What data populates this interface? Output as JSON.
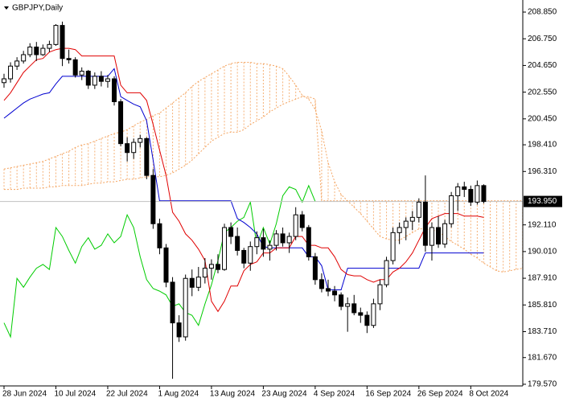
{
  "chart_data": {
    "type": "candlestick",
    "title": "GBPJPY,Daily",
    "categories": [
      "28 Jun 2024",
      null,
      null,
      null,
      null,
      null,
      null,
      null,
      "10 Jul 2024",
      null,
      null,
      null,
      null,
      null,
      null,
      null,
      "22 Jul 2024",
      null,
      null,
      null,
      null,
      null,
      null,
      null,
      "1 Aug 2024",
      null,
      null,
      null,
      null,
      null,
      null,
      null,
      "13 Aug 2024",
      null,
      null,
      null,
      null,
      null,
      null,
      null,
      "23 Aug 2024",
      null,
      null,
      null,
      null,
      null,
      null,
      null,
      "4 Sep 2024",
      null,
      null,
      null,
      null,
      null,
      null,
      null,
      "16 Sep 2024",
      null,
      null,
      null,
      null,
      null,
      null,
      null,
      "26 Sep 2024",
      null,
      null,
      null,
      null,
      null,
      null,
      null,
      "8 Oct 2024",
      null,
      null,
      null,
      null,
      null,
      null,
      null,
      null
    ],
    "open": [
      203.3,
      203.6,
      204.6,
      205.0,
      205.5,
      206.1,
      205.5,
      206.0,
      206.3,
      207.8,
      205.2,
      205.1,
      203.9,
      204.2,
      203.1,
      203.8,
      203.4,
      203.6,
      201.8,
      198.5,
      197.8,
      198.6,
      198.9,
      196.0,
      192.2,
      190.3,
      187.6,
      184.4,
      183.3,
      187.9,
      187.2,
      188.0,
      188.7,
      189.0,
      188.6,
      191.9,
      191.2,
      190.1,
      189.1,
      190.4,
      191.1,
      190.2,
      190.5,
      191.4,
      190.7,
      191.2,
      192.9,
      191.9,
      189.6,
      187.8,
      187.1,
      186.9,
      186.6,
      185.7,
      185.9,
      185.2,
      185.0,
      184.2,
      185.9,
      187.4,
      189.3,
      191.5,
      191.9,
      192.4,
      192.7,
      193.9,
      190.5,
      191.9,
      190.6,
      192.2,
      194.4,
      195.1,
      194.9,
      193.9,
      195.2,
      null,
      null,
      null,
      null,
      null,
      null
    ],
    "high": [
      204.0,
      204.9,
      205.3,
      205.8,
      206.4,
      206.5,
      206.3,
      206.6,
      207.9,
      208.1,
      205.9,
      205.3,
      204.5,
      204.3,
      204.1,
      204.2,
      203.9,
      203.8,
      202.0,
      199.0,
      198.9,
      199.2,
      199.0,
      196.5,
      192.6,
      190.6,
      188.0,
      185.0,
      188.2,
      188.6,
      188.8,
      189.5,
      189.4,
      189.8,
      192.2,
      192.3,
      191.9,
      190.3,
      190.8,
      191.6,
      191.8,
      190.9,
      191.7,
      191.9,
      191.5,
      193.5,
      193.2,
      192.1,
      189.9,
      188.3,
      187.8,
      187.3,
      186.8,
      186.4,
      186.6,
      185.6,
      185.3,
      186.3,
      187.8,
      189.6,
      191.9,
      192.3,
      192.7,
      193.2,
      194.2,
      196.0,
      192.3,
      192.8,
      192.5,
      194.7,
      195.4,
      195.5,
      195.2,
      195.6,
      195.3,
      null,
      null,
      null,
      null,
      null,
      null
    ],
    "low": [
      202.9,
      203.3,
      204.3,
      204.8,
      205.3,
      205.0,
      205.4,
      205.7,
      206.2,
      204.6,
      204.8,
      203.7,
      203.5,
      202.8,
      202.8,
      203.0,
      202.9,
      201.5,
      198.3,
      197.1,
      197.3,
      198.2,
      195.7,
      191.8,
      189.8,
      187.2,
      180.0,
      182.9,
      183.0,
      186.5,
      186.9,
      187.5,
      187.8,
      188.3,
      188.5,
      190.6,
      189.7,
      188.7,
      188.5,
      189.8,
      189.6,
      189.3,
      190.1,
      190.4,
      189.9,
      190.9,
      191.6,
      189.3,
      187.4,
      186.8,
      186.5,
      186.1,
      185.4,
      183.7,
      185.0,
      184.4,
      183.6,
      184.0,
      185.4,
      187.2,
      189.0,
      190.6,
      190.9,
      191.7,
      192.3,
      190.0,
      189.3,
      190.3,
      190.3,
      191.9,
      193.2,
      194.3,
      193.6,
      193.7,
      193.8,
      null,
      null,
      null,
      null,
      null,
      null
    ],
    "close": [
      203.6,
      204.6,
      205.0,
      205.5,
      206.1,
      205.5,
      206.0,
      206.3,
      207.8,
      205.2,
      205.1,
      203.9,
      204.2,
      203.1,
      203.8,
      203.4,
      203.6,
      201.8,
      198.5,
      197.8,
      198.6,
      198.9,
      196.0,
      192.2,
      190.3,
      187.6,
      184.4,
      183.3,
      187.9,
      187.2,
      188.0,
      188.7,
      189.0,
      188.6,
      191.9,
      191.2,
      190.1,
      189.1,
      190.4,
      191.1,
      190.2,
      190.5,
      191.4,
      190.7,
      191.2,
      192.9,
      191.9,
      189.6,
      187.8,
      187.1,
      186.9,
      186.6,
      185.7,
      185.9,
      185.2,
      185.0,
      184.2,
      185.9,
      187.4,
      189.3,
      191.5,
      191.9,
      192.4,
      192.7,
      193.9,
      190.5,
      191.9,
      190.6,
      192.2,
      194.4,
      195.1,
      194.9,
      193.9,
      195.2,
      193.95,
      null,
      null,
      null,
      null,
      null,
      null
    ],
    "bull_color": "#ffffff",
    "bear_color": "#000000",
    "tenkan": {
      "color": "#e00000",
      "values": [
        201.9,
        202.5,
        203.3,
        204.1,
        204.6,
        205.1,
        205.2,
        205.7,
        205.9,
        206.0,
        206.0,
        205.9,
        205.4,
        205.4,
        205.4,
        205.4,
        205.4,
        205.4,
        203.1,
        202.5,
        202.5,
        202.5,
        201.9,
        200.0,
        198.0,
        196.0,
        193.1,
        192.4,
        191.4,
        190.9,
        190.2,
        189.3,
        186.1,
        185.3,
        186.1,
        187.3,
        187.3,
        188.5,
        189.0,
        189.2,
        189.9,
        189.9,
        190.3,
        190.3,
        190.3,
        191.2,
        191.2,
        190.5,
        190.5,
        190.3,
        190.3,
        189.6,
        188.6,
        188.2,
        188.1,
        188.1,
        187.8,
        187.6,
        187.8,
        187.8,
        188.4,
        188.7,
        189.2,
        189.9,
        190.9,
        191.9,
        192.6,
        192.8,
        193.0,
        193.0,
        193.0,
        192.8,
        192.8,
        192.8,
        192.7,
        null,
        null,
        null,
        null,
        null,
        null
      ]
    },
    "kijun": {
      "color": "#0000d0",
      "values": [
        200.5,
        200.9,
        201.3,
        201.7,
        202.0,
        202.2,
        202.4,
        202.5,
        203.2,
        203.8,
        203.8,
        203.8,
        203.8,
        203.8,
        203.8,
        203.8,
        203.8,
        204.4,
        202.2,
        201.9,
        201.6,
        201.4,
        200.3,
        197.2,
        194.0,
        194.0,
        194.0,
        194.0,
        194.0,
        194.0,
        194.0,
        194.0,
        194.0,
        194.0,
        194.0,
        194.0,
        192.6,
        192.3,
        191.9,
        191.4,
        190.4,
        190.3,
        190.3,
        190.3,
        190.3,
        190.3,
        190.3,
        189.6,
        189.6,
        188.9,
        187.0,
        187.0,
        187.0,
        188.7,
        188.7,
        188.7,
        188.7,
        188.7,
        188.7,
        188.7,
        188.7,
        188.7,
        188.7,
        188.7,
        188.7,
        189.9,
        189.9,
        189.9,
        189.9,
        189.9,
        189.9,
        189.9,
        189.9,
        189.9,
        189.9,
        null,
        null,
        null,
        null,
        null,
        null
      ]
    },
    "chikou": {
      "color": "#00cc00",
      "shift": 26
    },
    "span_a": {
      "color": "#f4a460",
      "values": [
        196.5,
        196.6,
        196.7,
        196.8,
        196.9,
        197.0,
        197.1,
        197.3,
        197.5,
        197.7,
        197.9,
        198.2,
        198.4,
        198.5,
        198.7,
        198.9,
        199.1,
        199.3,
        199.4,
        199.6,
        199.9,
        200.2,
        200.4,
        200.7,
        200.9,
        201.3,
        201.7,
        202.1,
        202.5,
        203.0,
        203.4,
        203.7,
        204.0,
        204.3,
        204.6,
        204.8,
        204.9,
        204.9,
        204.9,
        204.8,
        204.8,
        204.7,
        204.6,
        204.4,
        203.8,
        203.1,
        202.3,
        202.0,
        201.2,
        199.5,
        197.0,
        195.5,
        194.5,
        194.0,
        193.5,
        193.0,
        192.4,
        191.8,
        191.2,
        191.0,
        190.9,
        190.9,
        191.2,
        191.5,
        191.8,
        191.8,
        191.7,
        191.6,
        191.2,
        190.8,
        190.5,
        190.2,
        189.8,
        189.5,
        189.1,
        188.8,
        188.5,
        188.4,
        188.5,
        188.6,
        188.7
      ]
    },
    "span_b": {
      "color": "#f4a460",
      "values": [
        194.9,
        194.9,
        194.9,
        195.0,
        195.0,
        195.0,
        195.0,
        195.1,
        195.1,
        195.2,
        195.2,
        195.2,
        195.2,
        195.3,
        195.4,
        195.4,
        195.5,
        195.5,
        195.6,
        195.7,
        195.7,
        195.8,
        195.9,
        195.9,
        195.9,
        196.0,
        196.2,
        196.5,
        196.8,
        197.2,
        197.7,
        198.2,
        198.7,
        199.0,
        199.3,
        199.4,
        199.4,
        199.6,
        200.0,
        200.3,
        200.6,
        201.0,
        201.3,
        201.6,
        201.8,
        202.0,
        202.2,
        202.2,
        202.0,
        194.0,
        194.0,
        194.0,
        194.0,
        194.0,
        194.0,
        194.0,
        194.0,
        194.0,
        194.0,
        194.0,
        194.0,
        194.0,
        194.0,
        194.0,
        194.0,
        194.0,
        194.0,
        194.0,
        194.0,
        194.0,
        194.0,
        194.0,
        194.0,
        194.0,
        194.0,
        194.0,
        194.0,
        194.0,
        194.0,
        194.0,
        194.0
      ]
    },
    "current_price": {
      "value": 193.95,
      "label": "193.950",
      "color": "#c0c0c0"
    },
    "ylim": [
      179.44,
      209.8
    ],
    "yticks": [
      {
        "value": 208.85,
        "label": "208.850"
      },
      {
        "value": 206.75,
        "label": "206.750"
      },
      {
        "value": 204.65,
        "label": "204.650"
      },
      {
        "value": 202.55,
        "label": "202.550"
      },
      {
        "value": 200.45,
        "label": "200.450"
      },
      {
        "value": 198.41,
        "label": "198.410"
      },
      {
        "value": 196.31,
        "label": "196.310"
      },
      {
        "value": 192.11,
        "label": "192.110"
      },
      {
        "value": 190.01,
        "label": "190.010"
      },
      {
        "value": 187.91,
        "label": "187.910"
      },
      {
        "value": 185.81,
        "label": "185.810"
      },
      {
        "value": 183.71,
        "label": "183.710"
      },
      {
        "value": 181.67,
        "label": "181.670"
      },
      {
        "value": 179.57,
        "label": "179.570"
      }
    ],
    "grid": false
  }
}
